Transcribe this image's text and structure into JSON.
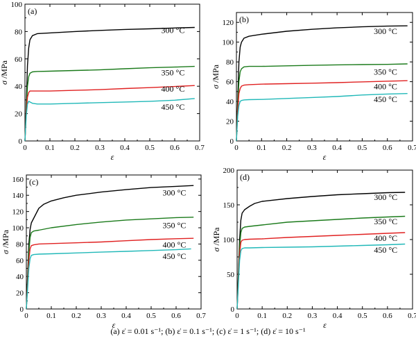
{
  "chart_data": [
    {
      "type": "line",
      "panel_label": "(a)",
      "xlabel": "ε",
      "ylabel_symbol": "σ",
      "ylabel_unit": "/MPa",
      "xlim": [
        0,
        0.7
      ],
      "ylim": [
        0,
        100
      ],
      "xticks": [
        "0",
        "0.1",
        "0.2",
        "0.3",
        "0.4",
        "0.5",
        "0.6",
        "0.7"
      ],
      "yticks": [
        "0",
        "20",
        "40",
        "60",
        "80",
        "100"
      ],
      "series": [
        {
          "name": "300 °C",
          "color": "#000000",
          "x": [
            0,
            0.005,
            0.01,
            0.015,
            0.02,
            0.03,
            0.05,
            0.1,
            0.2,
            0.3,
            0.4,
            0.5,
            0.6,
            0.68
          ],
          "y": [
            0,
            25,
            55,
            68,
            74,
            77,
            78.5,
            79,
            80,
            80.8,
            81.5,
            82,
            82.6,
            83
          ]
        },
        {
          "name": "350 °C",
          "color": "#1a7a1a",
          "x": [
            0,
            0.005,
            0.01,
            0.015,
            0.02,
            0.03,
            0.05,
            0.1,
            0.2,
            0.3,
            0.4,
            0.5,
            0.6,
            0.68
          ],
          "y": [
            0,
            22,
            40,
            47,
            49.5,
            50.5,
            50.8,
            51,
            51.5,
            52,
            52.8,
            53.5,
            54,
            54.5
          ]
        },
        {
          "name": "400 °C",
          "color": "#e02020",
          "x": [
            0,
            0.005,
            0.01,
            0.015,
            0.02,
            0.05,
            0.1,
            0.2,
            0.3,
            0.4,
            0.5,
            0.6,
            0.68
          ],
          "y": [
            0,
            20,
            32,
            35.5,
            36.5,
            36.5,
            36.5,
            37,
            37.5,
            38.3,
            39,
            39.8,
            40.5
          ]
        },
        {
          "name": "450 °C",
          "color": "#20b8b8",
          "x": [
            0,
            0.005,
            0.01,
            0.015,
            0.02,
            0.03,
            0.05,
            0.1,
            0.2,
            0.3,
            0.4,
            0.5,
            0.6,
            0.68
          ],
          "y": [
            0,
            18,
            27,
            29,
            28.5,
            27.5,
            27,
            27,
            27.5,
            28,
            28.5,
            29,
            29.8,
            31
          ]
        }
      ]
    },
    {
      "type": "line",
      "panel_label": "(b)",
      "xlabel": "ε",
      "ylabel_symbol": "σ",
      "ylabel_unit": "/MPa",
      "xlim": [
        0,
        0.7
      ],
      "ylim": [
        0,
        130
      ],
      "xticks": [
        "0",
        "0.1",
        "0.2",
        "0.3",
        "0.4",
        "0.5",
        "0.6",
        "0.7"
      ],
      "yticks": [
        "0",
        "20",
        "40",
        "60",
        "80",
        "100",
        "120"
      ],
      "series": [
        {
          "name": "300 °C",
          "color": "#000000",
          "x": [
            0,
            0.005,
            0.01,
            0.015,
            0.02,
            0.03,
            0.05,
            0.1,
            0.2,
            0.3,
            0.4,
            0.5,
            0.6,
            0.68
          ],
          "y": [
            0,
            40,
            80,
            95,
            100,
            104,
            106,
            108,
            111,
            113,
            114.5,
            115.5,
            116.2,
            116.5
          ]
        },
        {
          "name": "350 °C",
          "color": "#1a7a1a",
          "x": [
            0,
            0.005,
            0.01,
            0.015,
            0.02,
            0.03,
            0.05,
            0.1,
            0.2,
            0.3,
            0.4,
            0.5,
            0.6,
            0.68
          ],
          "y": [
            0,
            35,
            60,
            70,
            73,
            75,
            75.5,
            75.5,
            76,
            76.5,
            77,
            77.3,
            77.5,
            78
          ]
        },
        {
          "name": "400 °C",
          "color": "#e02020",
          "x": [
            0,
            0.005,
            0.01,
            0.015,
            0.02,
            0.03,
            0.05,
            0.1,
            0.2,
            0.3,
            0.4,
            0.5,
            0.6,
            0.68
          ],
          "y": [
            0,
            30,
            48,
            53,
            55.5,
            56.5,
            57,
            57.5,
            58,
            58.5,
            59,
            59.8,
            60.5,
            61
          ]
        },
        {
          "name": "450 °C",
          "color": "#20b8b8",
          "x": [
            0,
            0.005,
            0.01,
            0.015,
            0.02,
            0.03,
            0.05,
            0.1,
            0.2,
            0.3,
            0.4,
            0.5,
            0.6,
            0.68
          ],
          "y": [
            0,
            25,
            36,
            40,
            41,
            41.5,
            41.8,
            42,
            43,
            44,
            45,
            46.5,
            47.5,
            48
          ]
        }
      ]
    },
    {
      "type": "line",
      "panel_label": "(c)",
      "xlabel": "ε",
      "ylabel_symbol": "σ",
      "ylabel_unit": "/MPa",
      "xlim": [
        0,
        0.7
      ],
      "ylim": [
        0,
        165
      ],
      "xticks": [
        "0",
        "0.1",
        "0.2",
        "0.3",
        "0.4",
        "0.5",
        "0.6",
        "0.7"
      ],
      "yticks": [
        "0",
        "20",
        "40",
        "60",
        "80",
        "100",
        "120",
        "140",
        "160"
      ],
      "series": [
        {
          "name": "300 °C",
          "color": "#000000",
          "x": [
            0,
            0.005,
            0.01,
            0.015,
            0.02,
            0.03,
            0.04,
            0.05,
            0.07,
            0.1,
            0.15,
            0.2,
            0.3,
            0.4,
            0.5,
            0.6,
            0.67
          ],
          "y": [
            0,
            40,
            80,
            98,
            106,
            112,
            118,
            124,
            129,
            133,
            137,
            140,
            144,
            147,
            149.5,
            151,
            152
          ]
        },
        {
          "name": "350 °C",
          "color": "#1a7a1a",
          "x": [
            0,
            0.005,
            0.01,
            0.015,
            0.02,
            0.03,
            0.05,
            0.1,
            0.2,
            0.3,
            0.4,
            0.5,
            0.6,
            0.67
          ],
          "y": [
            0,
            35,
            70,
            88,
            94,
            96,
            97,
            100,
            104,
            107,
            109.5,
            111,
            112.5,
            113
          ]
        },
        {
          "name": "400 °C",
          "color": "#e02020",
          "x": [
            0,
            0.005,
            0.01,
            0.015,
            0.02,
            0.03,
            0.05,
            0.1,
            0.2,
            0.3,
            0.4,
            0.5,
            0.6,
            0.67
          ],
          "y": [
            0,
            30,
            60,
            74,
            78,
            79,
            80,
            80.5,
            81.5,
            82.5,
            84,
            85.5,
            86.5,
            87
          ]
        },
        {
          "name": "450 °C",
          "color": "#20b8b8",
          "x": [
            0,
            0.005,
            0.01,
            0.015,
            0.02,
            0.03,
            0.05,
            0.1,
            0.2,
            0.3,
            0.4,
            0.5,
            0.6,
            0.66
          ],
          "y": [
            0,
            25,
            50,
            62,
            66,
            67,
            67.5,
            68,
            69,
            70,
            71,
            72,
            73,
            74
          ]
        }
      ]
    },
    {
      "type": "line",
      "panel_label": "(d)",
      "xlabel": "ε",
      "ylabel_symbol": "σ",
      "ylabel_unit": "/MPa",
      "xlim": [
        0,
        0.7
      ],
      "ylim": [
        0,
        200
      ],
      "xticks": [
        "0",
        "0.1",
        "0.2",
        "0.3",
        "0.4",
        "0.5",
        "0.6",
        "0.7"
      ],
      "yticks": [
        "0",
        "50",
        "100",
        "150",
        "200"
      ],
      "series": [
        {
          "name": "300 °C",
          "color": "#000000",
          "x": [
            0,
            0.005,
            0.01,
            0.015,
            0.02,
            0.03,
            0.05,
            0.07,
            0.1,
            0.2,
            0.3,
            0.4,
            0.5,
            0.6,
            0.67
          ],
          "y": [
            0,
            50,
            100,
            128,
            138,
            143,
            148,
            152,
            155,
            159,
            162,
            164.5,
            166,
            167.5,
            168
          ]
        },
        {
          "name": "350 °C",
          "color": "#1a7a1a",
          "x": [
            0,
            0.005,
            0.01,
            0.015,
            0.02,
            0.03,
            0.05,
            0.1,
            0.2,
            0.3,
            0.4,
            0.5,
            0.6,
            0.67
          ],
          "y": [
            0,
            45,
            90,
            110,
            116,
            118,
            119,
            121,
            125,
            127,
            129,
            131,
            132.5,
            133.5
          ]
        },
        {
          "name": "400 °C",
          "color": "#e02020",
          "x": [
            0,
            0.005,
            0.01,
            0.015,
            0.02,
            0.03,
            0.05,
            0.1,
            0.2,
            0.3,
            0.4,
            0.5,
            0.6,
            0.67
          ],
          "y": [
            0,
            40,
            80,
            96,
            99,
            100,
            100.5,
            101,
            103,
            104.5,
            106,
            107.5,
            109,
            110
          ]
        },
        {
          "name": "450 °C",
          "color": "#20b8b8",
          "x": [
            0,
            0.005,
            0.01,
            0.015,
            0.02,
            0.03,
            0.05,
            0.1,
            0.2,
            0.3,
            0.4,
            0.5,
            0.6,
            0.67
          ],
          "y": [
            0,
            35,
            70,
            84,
            87,
            88,
            88,
            88.5,
            89,
            89.5,
            90.5,
            91.5,
            92.5,
            93.5
          ]
        }
      ]
    }
  ],
  "caption": "(a) ε̇ = 0.01 s⁻¹; (b) ε̇ = 0.1 s⁻¹; (c) ε̇ = 1 s⁻¹; (d) ε̇ = 10 s⁻¹"
}
